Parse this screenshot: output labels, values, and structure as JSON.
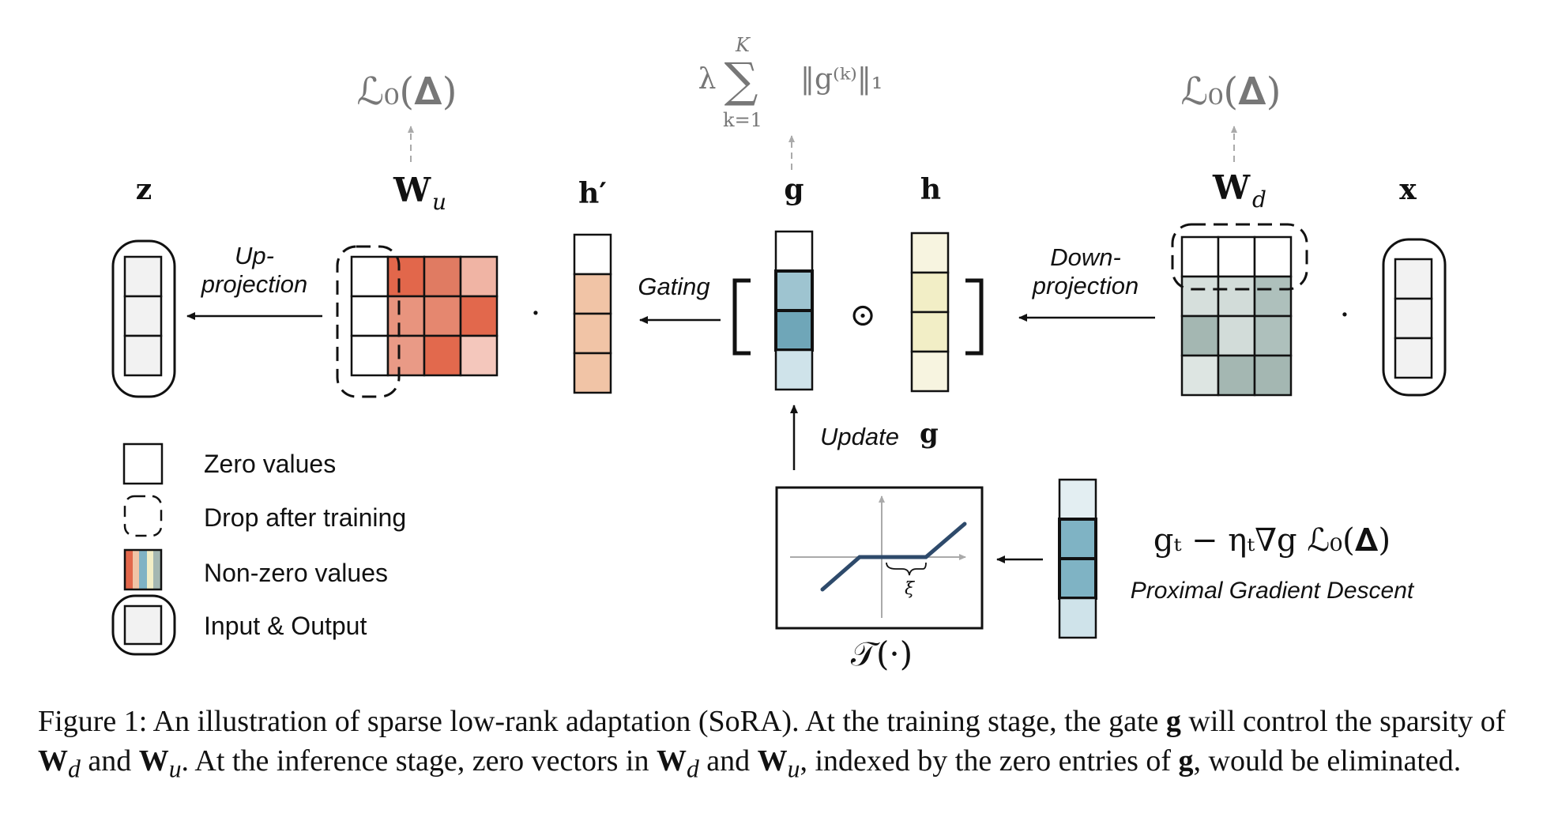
{
  "labels": {
    "z": "z",
    "wu_main": "W",
    "wu_sub": "u",
    "hprime": "h′",
    "g": "g",
    "h": "h",
    "wd_main": "W",
    "wd_sub": "d",
    "x": "x"
  },
  "formulas": {
    "l0_left": "ℒ₀(𝚫)",
    "l0_right": "ℒ₀(𝚫)",
    "sum_lambda": "λ",
    "sum_sigma": "∑",
    "sum_top": "K",
    "sum_bottom": "k=1",
    "sum_norm": "‖g⁽ᵏ⁾‖₁",
    "pgd_formula": "gₜ − ηₜ∇g ℒ₀(𝚫)",
    "threshold": "𝒯(·)",
    "xi": "ξ",
    "hadamard": "⊙",
    "dot": "·"
  },
  "operations": {
    "up_line1": "Up-",
    "up_line2": "projection",
    "down_line1": "Down-",
    "down_line2": "projection",
    "gating": "Gating",
    "update": "Update",
    "update_var": "g",
    "pgd_label": "Proximal Gradient Descent"
  },
  "legend": {
    "zero": "Zero values",
    "drop": "Drop after training",
    "nonzero": "Non-zero values",
    "io": "Input & Output"
  },
  "caption": {
    "part1": "Figure 1: An illustration of sparse low-rank adaptation (SoRA). At the training stage, the gate ",
    "g1": "g",
    "part2": " will control the sparsity of ",
    "wd1": "W",
    "wd1_sub": "d",
    "and1": " and ",
    "wu1": "W",
    "wu1_sub": "u",
    "part3": ". At the inference stage, zero vectors in ",
    "wd2": "W",
    "wd2_sub": "d",
    "and2": " and ",
    "wu2": "W",
    "wu2_sub": "u",
    "part4": ", indexed by the zero entries of ",
    "g2": "g",
    "part5": ", would be eliminated."
  },
  "colors": {
    "wu_cells": [
      "#ffffff",
      "#e2674b",
      "#e07b62",
      "#f0b4a4",
      "#ffffff",
      "#e8947e",
      "#e5876f",
      "#e2684c",
      "#ffffff",
      "#e99a86",
      "#e2694d",
      "#f4c7bc"
    ],
    "hprime_cells": [
      "#ffffff",
      "#f1c4a6",
      "#f1c4a6",
      "#f1c4a6"
    ],
    "g_cells": [
      "#ffffff",
      "#9ec4d0",
      "#6fa6b8",
      "#cfe3ea"
    ],
    "h_cells": [
      "#f7f4e0",
      "#f2eec6",
      "#f2eec6",
      "#f7f4e0"
    ],
    "wd_cells": [
      "#ffffff",
      "#ffffff",
      "#ffffff",
      "#d6dfdc",
      "#d2dcd9",
      "#aec0bc",
      "#a4b7b2",
      "#d2dcd9",
      "#aec0bc",
      "#dde5e2",
      "#a4b7b2",
      "#a4b7b2"
    ],
    "pgd_cells": [
      "#e3eef2",
      "#7fb3c4",
      "#7fb3c4",
      "#cfe3ea"
    ],
    "io_cell": "#f2f2f2",
    "threshold_curve": "#2e4a6b",
    "gray_text": "#777777"
  }
}
